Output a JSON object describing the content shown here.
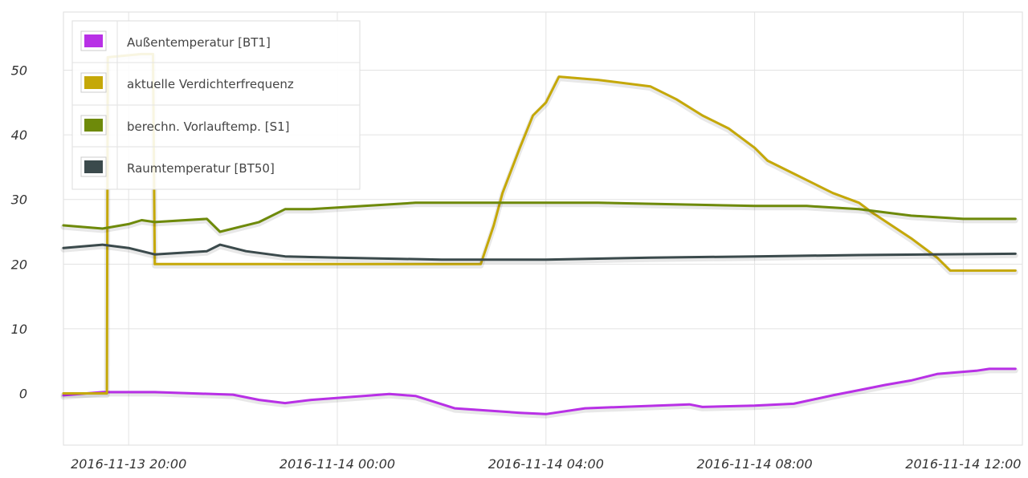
{
  "chart_data": {
    "type": "line",
    "title": "",
    "xlabel": "",
    "ylabel": "",
    "ylim": [
      -8,
      59
    ],
    "grid": true,
    "legend_placement": "top-left",
    "y_ticks": [
      0,
      10,
      20,
      30,
      40,
      50
    ],
    "y_tick_labels": [
      "0",
      "10",
      "20",
      "30",
      "40",
      "50"
    ],
    "x_ticks": [
      "2016-11-13 20:00",
      "2016-11-14 00:00",
      "2016-11-14 04:00",
      "2016-11-14 08:00",
      "2016-11-14 12:00"
    ],
    "x_range": [
      "2016-11-13 18:45",
      "2016-11-14 13:08"
    ],
    "series": [
      {
        "name": "Außentemperatur [BT1]",
        "color": "#b830e6",
        "points": [
          [
            "2016-11-13 18:45",
            -0.3
          ],
          [
            "2016-11-13 19:30",
            0.2
          ],
          [
            "2016-11-13 20:30",
            0.2
          ],
          [
            "2016-11-13 22:00",
            -0.2
          ],
          [
            "2016-11-13 22:30",
            -1.0
          ],
          [
            "2016-11-13 23:00",
            -1.5
          ],
          [
            "2016-11-13 23:30",
            -1.0
          ],
          [
            "2016-11-14 00:30",
            -0.4
          ],
          [
            "2016-11-14 01:00",
            -0.1
          ],
          [
            "2016-11-14 01:30",
            -0.4
          ],
          [
            "2016-11-14 02:15",
            -2.3
          ],
          [
            "2016-11-14 03:30",
            -3.0
          ],
          [
            "2016-11-14 04:00",
            -3.2
          ],
          [
            "2016-11-14 04:45",
            -2.3
          ],
          [
            "2016-11-14 06:45",
            -1.7
          ],
          [
            "2016-11-14 07:00",
            -2.1
          ],
          [
            "2016-11-14 08:00",
            -1.9
          ],
          [
            "2016-11-14 08:45",
            -1.6
          ],
          [
            "2016-11-14 09:30",
            -0.3
          ],
          [
            "2016-11-14 10:00",
            0.5
          ],
          [
            "2016-11-14 10:30",
            1.3
          ],
          [
            "2016-11-14 11:00",
            2.0
          ],
          [
            "2016-11-14 11:30",
            3.0
          ],
          [
            "2016-11-14 12:15",
            3.5
          ],
          [
            "2016-11-14 12:30",
            3.8
          ],
          [
            "2016-11-14 13:00",
            3.8
          ]
        ]
      },
      {
        "name": "aktuelle Verdichterfrequenz",
        "color": "#c5a808",
        "points": [
          [
            "2016-11-13 18:45",
            0
          ],
          [
            "2016-11-13 19:35",
            0
          ],
          [
            "2016-11-13 19:36",
            52
          ],
          [
            "2016-11-13 20:15",
            52.5
          ],
          [
            "2016-11-13 20:28",
            52.5
          ],
          [
            "2016-11-13 20:30",
            20
          ],
          [
            "2016-11-14 02:45",
            20
          ],
          [
            "2016-11-14 03:00",
            26
          ],
          [
            "2016-11-14 03:10",
            31
          ],
          [
            "2016-11-14 03:30",
            38
          ],
          [
            "2016-11-14 03:45",
            43
          ],
          [
            "2016-11-14 04:00",
            45
          ],
          [
            "2016-11-14 04:15",
            49
          ],
          [
            "2016-11-14 05:00",
            48.5
          ],
          [
            "2016-11-14 06:00",
            47.5
          ],
          [
            "2016-11-14 06:30",
            45.5
          ],
          [
            "2016-11-14 07:00",
            43
          ],
          [
            "2016-11-14 07:30",
            41
          ],
          [
            "2016-11-14 08:00",
            38
          ],
          [
            "2016-11-14 08:15",
            36
          ],
          [
            "2016-11-14 08:45",
            34
          ],
          [
            "2016-11-14 09:30",
            31
          ],
          [
            "2016-11-14 10:00",
            29.5
          ],
          [
            "2016-11-14 10:15",
            28
          ],
          [
            "2016-11-14 11:00",
            24
          ],
          [
            "2016-11-14 11:30",
            21
          ],
          [
            "2016-11-14 11:45",
            19
          ],
          [
            "2016-11-14 13:00",
            19
          ]
        ]
      },
      {
        "name": "berechn. Vorlauftemp. [S1]",
        "color": "#6e8a0a",
        "points": [
          [
            "2016-11-13 18:45",
            26
          ],
          [
            "2016-11-13 19:30",
            25.5
          ],
          [
            "2016-11-13 20:00",
            26.2
          ],
          [
            "2016-11-13 20:15",
            26.8
          ],
          [
            "2016-11-13 20:30",
            26.5
          ],
          [
            "2016-11-13 21:30",
            27
          ],
          [
            "2016-11-13 21:45",
            25
          ],
          [
            "2016-11-13 22:30",
            26.5
          ],
          [
            "2016-11-13 23:00",
            28.5
          ],
          [
            "2016-11-13 23:30",
            28.5
          ],
          [
            "2016-11-14 01:30",
            29.5
          ],
          [
            "2016-11-14 05:00",
            29.5
          ],
          [
            "2016-11-14 08:00",
            29
          ],
          [
            "2016-11-14 09:00",
            29
          ],
          [
            "2016-11-14 10:00",
            28.5
          ],
          [
            "2016-11-14 11:00",
            27.5
          ],
          [
            "2016-11-14 12:00",
            27
          ],
          [
            "2016-11-14 13:00",
            27
          ]
        ]
      },
      {
        "name": "Raumtemperatur [BT50]",
        "color": "#3b4a4c",
        "points": [
          [
            "2016-11-13 18:45",
            22.5
          ],
          [
            "2016-11-13 19:30",
            23
          ],
          [
            "2016-11-13 20:00",
            22.5
          ],
          [
            "2016-11-13 20:30",
            21.5
          ],
          [
            "2016-11-13 21:30",
            22
          ],
          [
            "2016-11-13 21:45",
            23
          ],
          [
            "2016-11-13 22:15",
            22
          ],
          [
            "2016-11-13 23:00",
            21.2
          ],
          [
            "2016-11-14 00:00",
            21
          ],
          [
            "2016-11-14 02:00",
            20.7
          ],
          [
            "2016-11-14 04:00",
            20.7
          ],
          [
            "2016-11-14 06:00",
            21
          ],
          [
            "2016-11-14 08:00",
            21.2
          ],
          [
            "2016-11-14 10:00",
            21.4
          ],
          [
            "2016-11-14 13:00",
            21.6
          ]
        ]
      }
    ]
  }
}
